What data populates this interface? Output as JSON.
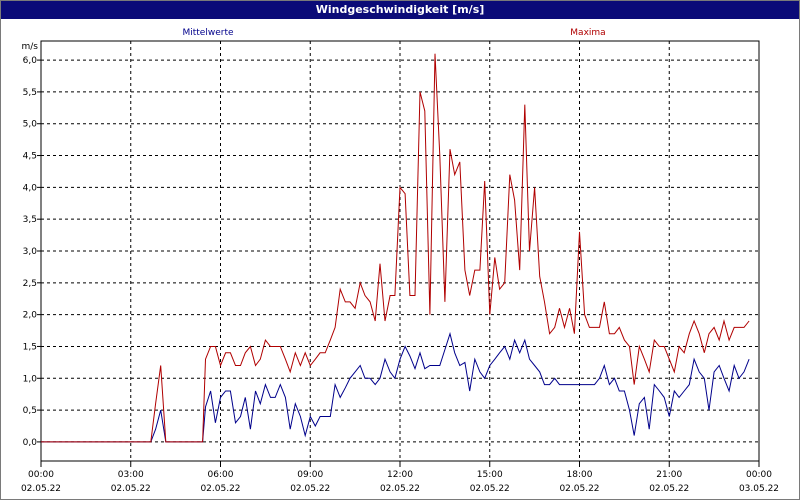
{
  "window": {
    "title": "Windgeschwindigkeit [m/s]"
  },
  "chart_data": {
    "type": "line",
    "title": "Windgeschwindigkeit [m/s]",
    "ylabel": "m/s",
    "xlabel": "",
    "ylim": [
      -0.3,
      6.3
    ],
    "grid": true,
    "legend_position": "top",
    "y_ticks": [
      "0,0",
      "0,5",
      "1,0",
      "1,5",
      "2,0",
      "2,5",
      "3,0",
      "3,5",
      "4,0",
      "4,5",
      "5,0",
      "5,5",
      "6,0"
    ],
    "y_tick_values": [
      0,
      0.5,
      1,
      1.5,
      2,
      2.5,
      3,
      3.5,
      4,
      4.5,
      5,
      5.5,
      6
    ],
    "x_range_hours": [
      0,
      24
    ],
    "x_ticks": [
      {
        "time": "00:00",
        "date": "02.05.22"
      },
      {
        "time": "03:00",
        "date": "02.05.22"
      },
      {
        "time": "06:00",
        "date": "02.05.22"
      },
      {
        "time": "09:00",
        "date": "02.05.22"
      },
      {
        "time": "12:00",
        "date": "02.05.22"
      },
      {
        "time": "15:00",
        "date": "02.05.22"
      },
      {
        "time": "18:00",
        "date": "02.05.22"
      },
      {
        "time": "21:00",
        "date": "02.05.22"
      },
      {
        "time": "00:00",
        "date": "03.05.22"
      }
    ],
    "series": [
      {
        "name": "Mittelwerte",
        "color": "#00008b",
        "points": [
          [
            0,
            0
          ],
          [
            3.67,
            0
          ],
          [
            3.83,
            0.2
          ],
          [
            4.0,
            0.5
          ],
          [
            4.17,
            0
          ],
          [
            5.4,
            0
          ],
          [
            5.5,
            0.55
          ],
          [
            5.67,
            0.8
          ],
          [
            5.83,
            0.3
          ],
          [
            6.0,
            0.7
          ],
          [
            6.17,
            0.8
          ],
          [
            6.33,
            0.8
          ],
          [
            6.5,
            0.3
          ],
          [
            6.67,
            0.4
          ],
          [
            6.83,
            0.7
          ],
          [
            7.0,
            0.2
          ],
          [
            7.17,
            0.8
          ],
          [
            7.33,
            0.6
          ],
          [
            7.5,
            0.9
          ],
          [
            7.67,
            0.7
          ],
          [
            7.83,
            0.7
          ],
          [
            8.0,
            0.9
          ],
          [
            8.17,
            0.7
          ],
          [
            8.33,
            0.2
          ],
          [
            8.5,
            0.6
          ],
          [
            8.67,
            0.4
          ],
          [
            8.83,
            0.1
          ],
          [
            9.0,
            0.4
          ],
          [
            9.17,
            0.25
          ],
          [
            9.33,
            0.4
          ],
          [
            9.5,
            0.4
          ],
          [
            9.67,
            0.4
          ],
          [
            9.83,
            0.9
          ],
          [
            10.0,
            0.7
          ],
          [
            10.17,
            0.85
          ],
          [
            10.33,
            1.0
          ],
          [
            10.5,
            1.1
          ],
          [
            10.67,
            1.2
          ],
          [
            10.83,
            1.0
          ],
          [
            11.0,
            1.0
          ],
          [
            11.17,
            0.9
          ],
          [
            11.33,
            1.0
          ],
          [
            11.5,
            1.3
          ],
          [
            11.67,
            1.1
          ],
          [
            11.83,
            1.0
          ],
          [
            12.0,
            1.3
          ],
          [
            12.17,
            1.5
          ],
          [
            12.33,
            1.35
          ],
          [
            12.5,
            1.15
          ],
          [
            12.67,
            1.4
          ],
          [
            12.83,
            1.15
          ],
          [
            13.0,
            1.2
          ],
          [
            13.17,
            1.2
          ],
          [
            13.33,
            1.2
          ],
          [
            13.5,
            1.45
          ],
          [
            13.67,
            1.7
          ],
          [
            13.83,
            1.4
          ],
          [
            14.0,
            1.2
          ],
          [
            14.17,
            1.25
          ],
          [
            14.33,
            0.8
          ],
          [
            14.5,
            1.3
          ],
          [
            14.67,
            1.1
          ],
          [
            14.83,
            1.0
          ],
          [
            15.0,
            1.2
          ],
          [
            15.17,
            1.3
          ],
          [
            15.33,
            1.4
          ],
          [
            15.5,
            1.5
          ],
          [
            15.67,
            1.3
          ],
          [
            15.83,
            1.6
          ],
          [
            16.0,
            1.4
          ],
          [
            16.17,
            1.6
          ],
          [
            16.33,
            1.3
          ],
          [
            16.5,
            1.2
          ],
          [
            16.67,
            1.1
          ],
          [
            16.83,
            0.9
          ],
          [
            17.0,
            0.9
          ],
          [
            17.17,
            1.0
          ],
          [
            17.33,
            0.9
          ],
          [
            17.5,
            0.9
          ],
          [
            17.67,
            0.9
          ],
          [
            17.83,
            0.9
          ],
          [
            18.0,
            0.9
          ],
          [
            18.33,
            0.9
          ],
          [
            18.5,
            0.9
          ],
          [
            18.67,
            1.0
          ],
          [
            18.83,
            1.2
          ],
          [
            19.0,
            0.9
          ],
          [
            19.17,
            1.0
          ],
          [
            19.33,
            0.8
          ],
          [
            19.5,
            0.8
          ],
          [
            19.67,
            0.5
          ],
          [
            19.83,
            0.1
          ],
          [
            20.0,
            0.6
          ],
          [
            20.17,
            0.7
          ],
          [
            20.33,
            0.2
          ],
          [
            20.5,
            0.9
          ],
          [
            20.67,
            0.8
          ],
          [
            20.83,
            0.7
          ],
          [
            21.0,
            0.4
          ],
          [
            21.17,
            0.8
          ],
          [
            21.33,
            0.7
          ],
          [
            21.5,
            0.8
          ],
          [
            21.67,
            0.9
          ],
          [
            21.83,
            1.3
          ],
          [
            22.0,
            1.1
          ],
          [
            22.17,
            1.0
          ],
          [
            22.33,
            0.5
          ],
          [
            22.5,
            1.1
          ],
          [
            22.67,
            1.2
          ],
          [
            22.83,
            1.0
          ],
          [
            23.0,
            0.8
          ],
          [
            23.17,
            1.2
          ],
          [
            23.33,
            1.0
          ],
          [
            23.5,
            1.1
          ],
          [
            23.67,
            1.3
          ]
        ]
      },
      {
        "name": "Maxima",
        "color": "#b00000",
        "points": [
          [
            0,
            0
          ],
          [
            3.67,
            0
          ],
          [
            3.83,
            0.6
          ],
          [
            4.0,
            1.2
          ],
          [
            4.17,
            0
          ],
          [
            5.4,
            0
          ],
          [
            5.5,
            1.3
          ],
          [
            5.67,
            1.5
          ],
          [
            5.83,
            1.5
          ],
          [
            6.0,
            1.2
          ],
          [
            6.17,
            1.4
          ],
          [
            6.33,
            1.4
          ],
          [
            6.5,
            1.2
          ],
          [
            6.67,
            1.2
          ],
          [
            6.83,
            1.4
          ],
          [
            7.0,
            1.5
          ],
          [
            7.17,
            1.2
          ],
          [
            7.33,
            1.3
          ],
          [
            7.5,
            1.6
          ],
          [
            7.67,
            1.5
          ],
          [
            7.83,
            1.5
          ],
          [
            8.0,
            1.5
          ],
          [
            8.17,
            1.3
          ],
          [
            8.33,
            1.1
          ],
          [
            8.5,
            1.4
          ],
          [
            8.67,
            1.2
          ],
          [
            8.83,
            1.4
          ],
          [
            9.0,
            1.2
          ],
          [
            9.17,
            1.3
          ],
          [
            9.33,
            1.4
          ],
          [
            9.5,
            1.4
          ],
          [
            9.67,
            1.6
          ],
          [
            9.83,
            1.8
          ],
          [
            10.0,
            2.4
          ],
          [
            10.17,
            2.2
          ],
          [
            10.33,
            2.2
          ],
          [
            10.5,
            2.1
          ],
          [
            10.67,
            2.5
          ],
          [
            10.83,
            2.3
          ],
          [
            11.0,
            2.2
          ],
          [
            11.17,
            1.9
          ],
          [
            11.33,
            2.8
          ],
          [
            11.5,
            1.9
          ],
          [
            11.67,
            2.3
          ],
          [
            11.83,
            2.3
          ],
          [
            12.0,
            4.0
          ],
          [
            12.17,
            3.9
          ],
          [
            12.33,
            2.3
          ],
          [
            12.5,
            2.3
          ],
          [
            12.67,
            5.5
          ],
          [
            12.83,
            5.2
          ],
          [
            13.0,
            2.0
          ],
          [
            13.17,
            6.1
          ],
          [
            13.33,
            4.5
          ],
          [
            13.5,
            2.2
          ],
          [
            13.67,
            4.6
          ],
          [
            13.83,
            4.2
          ],
          [
            14.0,
            4.4
          ],
          [
            14.17,
            2.7
          ],
          [
            14.33,
            2.3
          ],
          [
            14.5,
            2.7
          ],
          [
            14.67,
            2.7
          ],
          [
            14.83,
            4.1
          ],
          [
            15.0,
            2.0
          ],
          [
            15.17,
            2.9
          ],
          [
            15.33,
            2.4
          ],
          [
            15.5,
            2.5
          ],
          [
            15.67,
            4.2
          ],
          [
            15.83,
            3.8
          ],
          [
            16.0,
            2.7
          ],
          [
            16.17,
            5.3
          ],
          [
            16.33,
            3.0
          ],
          [
            16.5,
            4.0
          ],
          [
            16.67,
            2.6
          ],
          [
            16.83,
            2.2
          ],
          [
            17.0,
            1.7
          ],
          [
            17.17,
            1.8
          ],
          [
            17.33,
            2.1
          ],
          [
            17.5,
            1.8
          ],
          [
            17.67,
            2.1
          ],
          [
            17.83,
            1.7
          ],
          [
            18.0,
            3.3
          ],
          [
            18.17,
            2.0
          ],
          [
            18.33,
            1.8
          ],
          [
            18.5,
            1.8
          ],
          [
            18.67,
            1.8
          ],
          [
            18.83,
            2.2
          ],
          [
            19.0,
            1.7
          ],
          [
            19.17,
            1.7
          ],
          [
            19.33,
            1.8
          ],
          [
            19.5,
            1.6
          ],
          [
            19.67,
            1.5
          ],
          [
            19.83,
            0.9
          ],
          [
            20.0,
            1.5
          ],
          [
            20.17,
            1.3
          ],
          [
            20.33,
            1.1
          ],
          [
            20.5,
            1.6
          ],
          [
            20.67,
            1.5
          ],
          [
            20.83,
            1.5
          ],
          [
            21.0,
            1.3
          ],
          [
            21.17,
            1.1
          ],
          [
            21.33,
            1.5
          ],
          [
            21.5,
            1.4
          ],
          [
            21.67,
            1.7
          ],
          [
            21.83,
            1.9
          ],
          [
            22.0,
            1.7
          ],
          [
            22.17,
            1.4
          ],
          [
            22.33,
            1.7
          ],
          [
            22.5,
            1.8
          ],
          [
            22.67,
            1.6
          ],
          [
            22.83,
            1.9
          ],
          [
            23.0,
            1.6
          ],
          [
            23.17,
            1.8
          ],
          [
            23.33,
            1.8
          ],
          [
            23.5,
            1.8
          ],
          [
            23.67,
            1.9
          ]
        ]
      }
    ]
  }
}
